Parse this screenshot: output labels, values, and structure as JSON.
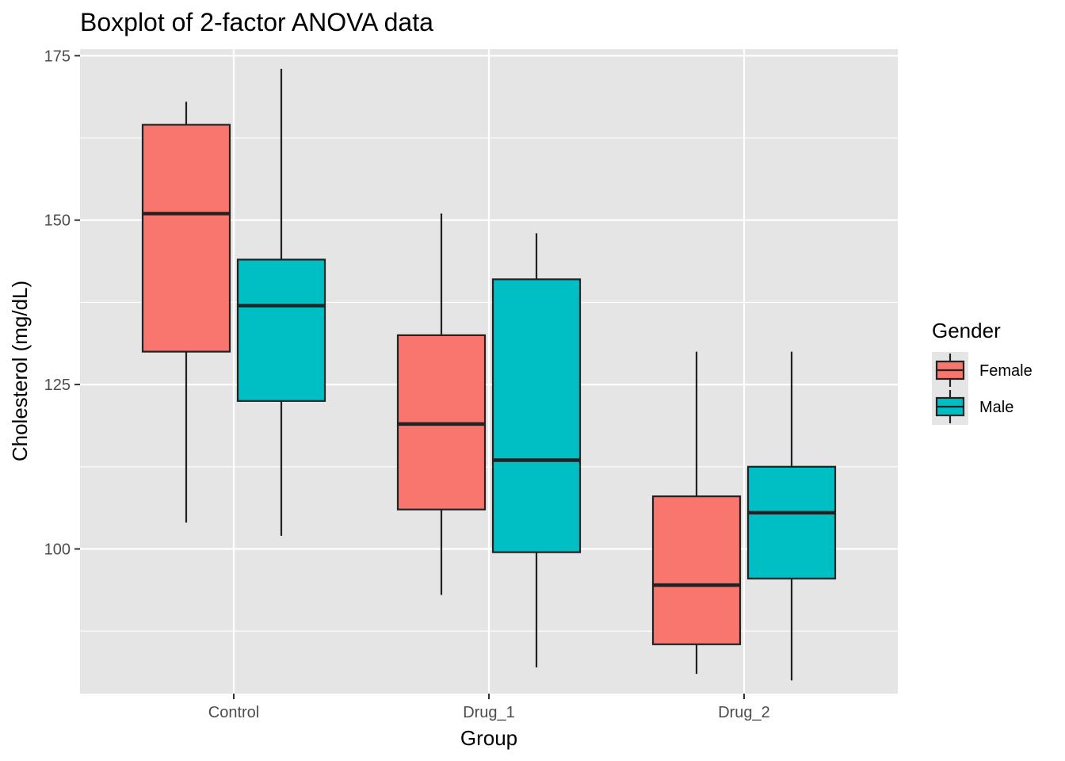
{
  "chart_data": {
    "type": "boxplot",
    "title": "Boxplot of 2-factor ANOVA data",
    "xlabel": "Group",
    "ylabel": "Cholesterol (mg/dL)",
    "categories": [
      "Control",
      "Drug_1",
      "Drug_2"
    ],
    "ylim": [
      78,
      176
    ],
    "y_ticks": [
      100,
      125,
      150,
      175
    ],
    "y_minor_ticks": [
      87.5,
      112.5,
      137.5,
      162.5
    ],
    "grid": true,
    "legend": {
      "title": "Gender",
      "position": "right",
      "entries": [
        "Female",
        "Male"
      ]
    },
    "series": [
      {
        "name": "Female",
        "color": "#F8766D",
        "boxes": [
          {
            "category": "Control",
            "min": 104,
            "q1": 130,
            "median": 151,
            "q3": 164.5,
            "max": 168
          },
          {
            "category": "Drug_1",
            "min": 93,
            "q1": 106,
            "median": 119,
            "q3": 132.5,
            "max": 151
          },
          {
            "category": "Drug_2",
            "min": 81,
            "q1": 85.5,
            "median": 94.5,
            "q3": 108,
            "max": 130
          }
        ]
      },
      {
        "name": "Male",
        "color": "#00BFC4",
        "boxes": [
          {
            "category": "Control",
            "min": 102,
            "q1": 122.5,
            "median": 137,
            "q3": 144,
            "max": 173
          },
          {
            "category": "Drug_1",
            "min": 82,
            "q1": 99.5,
            "median": 113.5,
            "q3": 141,
            "max": 148
          },
          {
            "category": "Drug_2",
            "min": 80,
            "q1": 95.5,
            "median": 105.5,
            "q3": 112.5,
            "max": 130
          }
        ]
      }
    ],
    "colors": {
      "panel_background": "#E5E5E5",
      "grid_major": "#FFFFFF",
      "outline": "#222222"
    }
  }
}
